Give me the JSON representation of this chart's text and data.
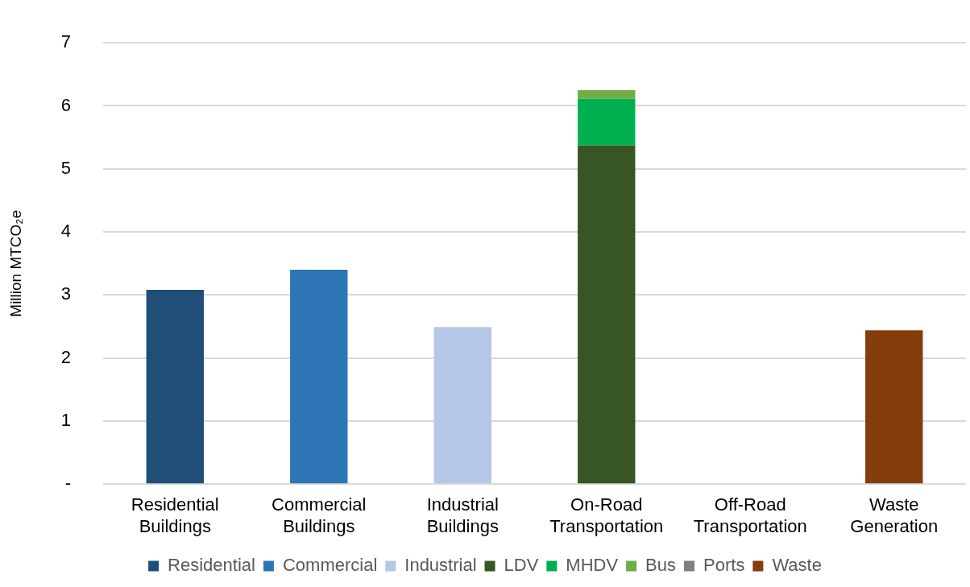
{
  "chart_data": {
    "type": "bar",
    "stacked": true,
    "ylabel": "Million MTCO₂e",
    "categories": [
      "Residential Buildings",
      "Commercial Buildings",
      "Industrial Buildings",
      "On-Road Transportation",
      "Off-Road Transportation",
      "Waste Generation"
    ],
    "series": [
      {
        "name": "Residential",
        "color": "#1f4e79",
        "values": [
          3.08,
          null,
          null,
          null,
          null,
          null
        ]
      },
      {
        "name": "Commercial",
        "color": "#2e75b6",
        "values": [
          null,
          3.4,
          null,
          null,
          null,
          null
        ]
      },
      {
        "name": "Industrial",
        "color": "#b4c7e7",
        "values": [
          null,
          null,
          2.49,
          null,
          null,
          null
        ]
      },
      {
        "name": "LDV",
        "color": "#375623",
        "values": [
          null,
          null,
          null,
          5.37,
          null,
          null
        ]
      },
      {
        "name": "MHDV",
        "color": "#00b050",
        "values": [
          null,
          null,
          null,
          0.74,
          null,
          null
        ]
      },
      {
        "name": "Bus",
        "color": "#70ad47",
        "values": [
          null,
          null,
          null,
          0.14,
          null,
          null
        ]
      },
      {
        "name": "Ports",
        "color": "#7f7f7f",
        "values": [
          null,
          null,
          null,
          null,
          0,
          null
        ]
      },
      {
        "name": "Waste",
        "color": "#843c0c",
        "values": [
          null,
          null,
          null,
          null,
          null,
          2.44
        ]
      }
    ],
    "ylim": [
      0,
      7
    ],
    "yticks": [
      {
        "value": 0,
        "label": "-"
      },
      1,
      2,
      3,
      4,
      5,
      6,
      7
    ],
    "grid": "y",
    "legend": "bottom"
  }
}
